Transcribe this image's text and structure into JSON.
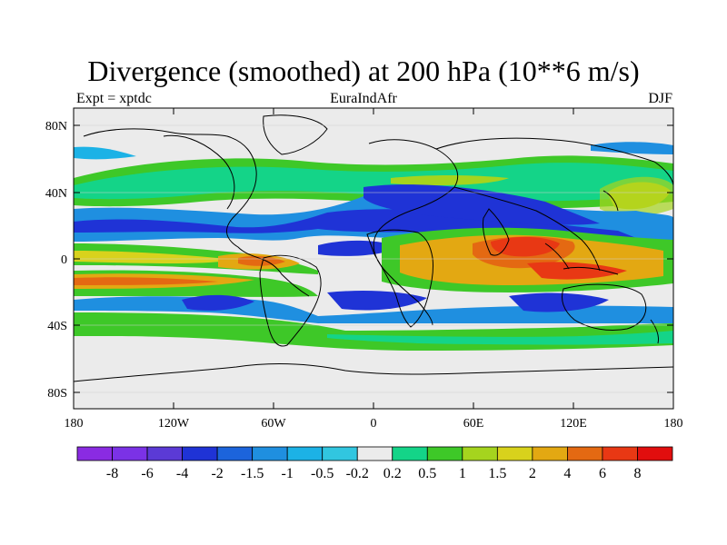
{
  "title": "Divergence (smoothed) at 200 hPa (10**6 m/s)",
  "subtitle_left": "Expt = xptdc",
  "subtitle_center": "EuraIndAfr",
  "subtitle_right": "DJF",
  "lat_labels": [
    "80N",
    "40N",
    "0",
    "40S",
    "80S"
  ],
  "lon_labels": [
    "180",
    "120W",
    "60W",
    "0",
    "60E",
    "120E",
    "180"
  ],
  "colorbar": {
    "labels": [
      "-8",
      "-6",
      "-4",
      "-2",
      "-1.5",
      "-1",
      "-0.5",
      "-0.2",
      "0.2",
      "0.5",
      "1",
      "1.5",
      "2",
      "4",
      "6",
      "8"
    ],
    "colors": [
      "#8a2be2",
      "#7b32e6",
      "#5b3ad6",
      "#1f33d6",
      "#1c64dc",
      "#1f8fe0",
      "#1cb2e6",
      "#31c6e0",
      "#ebebeb",
      "#14d488",
      "#3ec828",
      "#a5d41e",
      "#d8d21c",
      "#e3a812",
      "#e46912",
      "#e83814",
      "#e10e0e"
    ]
  },
  "colors": {
    "neutral": "#ebebeb",
    "ocean_land_bg": "#ebebeb",
    "outline": "#000000"
  }
}
